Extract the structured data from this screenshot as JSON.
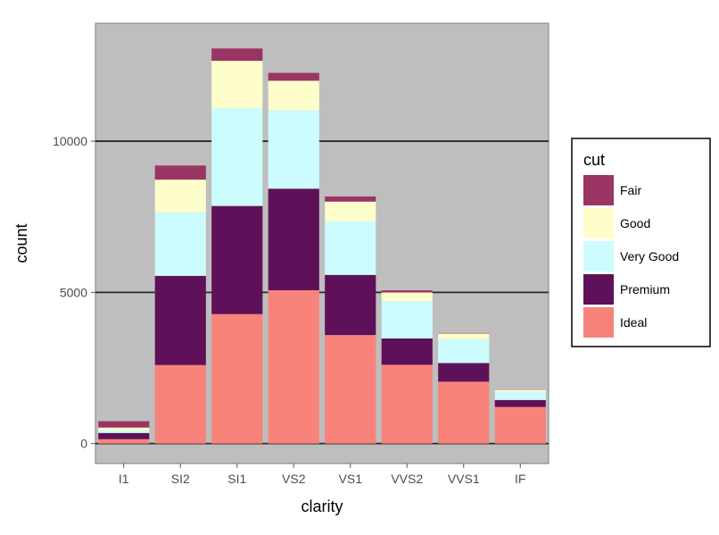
{
  "chart_data": {
    "type": "bar",
    "stacked": true,
    "categories": [
      "I1",
      "SI2",
      "SI1",
      "VS2",
      "VS1",
      "VVS2",
      "VVS1",
      "IF"
    ],
    "series": [
      {
        "name": "Ideal",
        "color": "#f8837b",
        "values": [
          146,
          2598,
          4282,
          5071,
          3589,
          2606,
          2047,
          1212
        ]
      },
      {
        "name": "Premium",
        "color": "#5e1159",
        "values": [
          205,
          2949,
          3575,
          3357,
          1989,
          870,
          616,
          230
        ]
      },
      {
        "name": "Very Good",
        "color": "#ccfcfd",
        "values": [
          84,
          2100,
          3240,
          2591,
          1775,
          1235,
          789,
          268
        ]
      },
      {
        "name": "Good",
        "color": "#fefecb",
        "values": [
          96,
          1081,
          1560,
          978,
          648,
          286,
          186,
          71
        ]
      },
      {
        "name": "Fair",
        "color": "#9a3563",
        "values": [
          210,
          466,
          408,
          261,
          170,
          69,
          17,
          9
        ]
      }
    ],
    "xlabel": "clarity",
    "ylabel": "count",
    "yticks": [
      0,
      5000,
      10000
    ],
    "ylim": [
      -660,
      13900
    ],
    "grid": "horizontal major lines",
    "panel_background": "#bebebe",
    "legend": {
      "title": "cut",
      "position": "right",
      "entries": [
        "Fair",
        "Good",
        "Very Good",
        "Premium",
        "Ideal"
      ]
    }
  }
}
